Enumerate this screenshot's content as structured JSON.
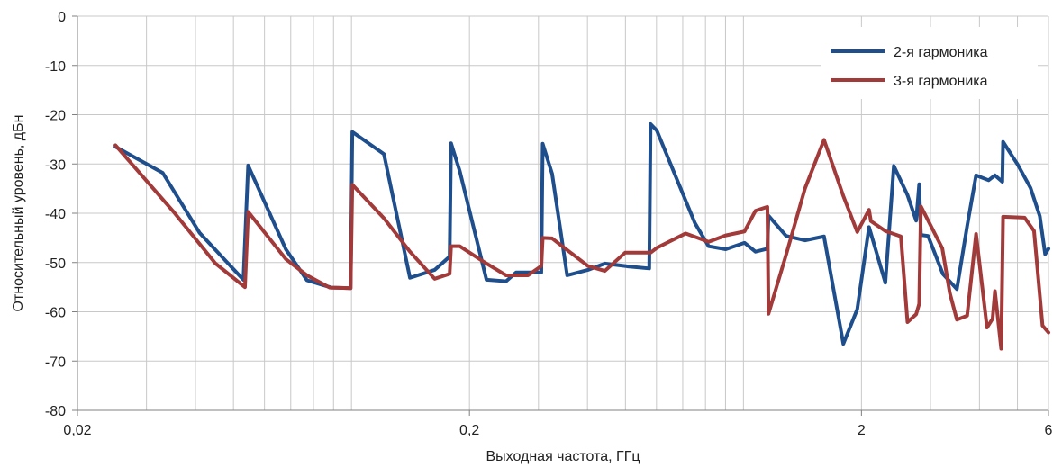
{
  "chart_data": {
    "type": "line",
    "title": "",
    "xlabel": "Выходная частота, ГГц",
    "ylabel": "Относительный уровень, дБн",
    "xscale": "log",
    "xlim": [
      0.02,
      6
    ],
    "ylim": [
      -80,
      0
    ],
    "x_ticks": [
      {
        "value": 0.02,
        "label": "0,02"
      },
      {
        "value": 0.2,
        "label": "0,2"
      },
      {
        "value": 2,
        "label": "2"
      },
      {
        "value": 6,
        "label": "6"
      }
    ],
    "y_ticks": [
      0,
      -10,
      -20,
      -30,
      -40,
      -50,
      -60,
      -70,
      -80
    ],
    "grid": true,
    "legend_position": "top-right",
    "series": [
      {
        "name": "2-я гармоника",
        "color": "#1f4e8c",
        "points": [
          [
            0.025,
            -26.5
          ],
          [
            0.033,
            -31.8
          ],
          [
            0.041,
            -44
          ],
          [
            0.053,
            -53.5
          ],
          [
            0.0545,
            -30.3
          ],
          [
            0.068,
            -47.3
          ],
          [
            0.077,
            -53.6
          ],
          [
            0.089,
            -55.1
          ],
          [
            0.0995,
            -55.2
          ],
          [
            0.1005,
            -23.5
          ],
          [
            0.121,
            -28
          ],
          [
            0.141,
            -53.1
          ],
          [
            0.163,
            -51.5
          ],
          [
            0.178,
            -48.8
          ],
          [
            0.1795,
            -25.8
          ],
          [
            0.189,
            -31.5
          ],
          [
            0.221,
            -53.5
          ],
          [
            0.248,
            -53.8
          ],
          [
            0.263,
            -52
          ],
          [
            0.305,
            -52
          ],
          [
            0.3075,
            -25.9
          ],
          [
            0.325,
            -32
          ],
          [
            0.355,
            -52.6
          ],
          [
            0.401,
            -51.5
          ],
          [
            0.443,
            -50.2
          ],
          [
            0.499,
            -50.7
          ],
          [
            0.5075,
            -50.8
          ],
          [
            0.575,
            -51.2
          ],
          [
            0.5795,
            -21.9
          ],
          [
            0.601,
            -23.2
          ],
          [
            0.752,
            -42
          ],
          [
            0.815,
            -46.7
          ],
          [
            0.901,
            -47.3
          ],
          [
            1.006,
            -46
          ],
          [
            1.073,
            -47.8
          ],
          [
            1.151,
            -47.2
          ],
          [
            1.1585,
            -40.5
          ],
          [
            1.285,
            -44.6
          ],
          [
            1.435,
            -45.5
          ],
          [
            1.605,
            -44.7
          ],
          [
            1.798,
            -66.5
          ],
          [
            1.951,
            -59.5
          ],
          [
            2.091,
            -42.8
          ],
          [
            2.301,
            -54.1
          ],
          [
            2.419,
            -30.4
          ],
          [
            2.621,
            -36.3
          ],
          [
            2.758,
            -41.5
          ],
          [
            2.8075,
            -34.1
          ],
          [
            2.8355,
            -44.4
          ],
          [
            2.958,
            -44.6
          ],
          [
            3.226,
            -52.3
          ],
          [
            3.503,
            -55.4
          ],
          [
            3.721,
            -42.6
          ],
          [
            3.921,
            -32.3
          ],
          [
            4.221,
            -33.3
          ],
          [
            4.381,
            -32.3
          ],
          [
            4.575,
            -33.6
          ],
          [
            4.5945,
            -25.5
          ],
          [
            5.005,
            -30.1
          ],
          [
            5.402,
            -34.9
          ],
          [
            5.702,
            -40.6
          ],
          [
            5.883,
            -48.3
          ],
          [
            6.0,
            -47.2
          ]
        ]
      },
      {
        "name": "3-я гармоника",
        "color": "#a23a3a",
        "points": [
          [
            0.025,
            -26.2
          ],
          [
            0.035,
            -39.5
          ],
          [
            0.045,
            -50.2
          ],
          [
            0.0535,
            -55
          ],
          [
            0.0545,
            -39.7
          ],
          [
            0.068,
            -49.3
          ],
          [
            0.077,
            -52.6
          ],
          [
            0.088,
            -55.1
          ],
          [
            0.0995,
            -55.2
          ],
          [
            0.1005,
            -34.2
          ],
          [
            0.121,
            -41
          ],
          [
            0.141,
            -47.8
          ],
          [
            0.163,
            -53.3
          ],
          [
            0.178,
            -52.3
          ],
          [
            0.1795,
            -46.7
          ],
          [
            0.189,
            -46.7
          ],
          [
            0.217,
            -49.8
          ],
          [
            0.248,
            -52.6
          ],
          [
            0.282,
            -52.6
          ],
          [
            0.305,
            -50.7
          ],
          [
            0.3075,
            -45
          ],
          [
            0.325,
            -45.1
          ],
          [
            0.401,
            -50.7
          ],
          [
            0.443,
            -51.7
          ],
          [
            0.499,
            -48
          ],
          [
            0.5795,
            -48
          ],
          [
            0.602,
            -47
          ],
          [
            0.712,
            -44.1
          ],
          [
            0.815,
            -45.8
          ],
          [
            0.901,
            -44.5
          ],
          [
            1.006,
            -43.7
          ],
          [
            1.073,
            -39.5
          ],
          [
            1.151,
            -38.7
          ],
          [
            1.1585,
            -60.4
          ],
          [
            1.285,
            -48.4
          ],
          [
            1.435,
            -35
          ],
          [
            1.605,
            -25.1
          ],
          [
            1.798,
            -36.5
          ],
          [
            1.951,
            -43.8
          ],
          [
            2.091,
            -39.3
          ],
          [
            2.114,
            -41.6
          ],
          [
            2.301,
            -43.6
          ],
          [
            2.521,
            -44.7
          ],
          [
            2.621,
            -62.1
          ],
          [
            2.758,
            -60.5
          ],
          [
            2.8075,
            -58.4
          ],
          [
            2.8355,
            -38.6
          ],
          [
            3.215,
            -47.1
          ],
          [
            3.361,
            -56.2
          ],
          [
            3.503,
            -61.6
          ],
          [
            3.721,
            -60.8
          ],
          [
            3.921,
            -44.2
          ],
          [
            4.181,
            -63.2
          ],
          [
            4.321,
            -61.4
          ],
          [
            4.381,
            -55.8
          ],
          [
            4.5445,
            -67.5
          ],
          [
            4.5945,
            -40.7
          ],
          [
            5.215,
            -40.9
          ],
          [
            5.512,
            -43.6
          ],
          [
            5.793,
            -62.8
          ],
          [
            6.0,
            -64.2
          ]
        ]
      }
    ]
  }
}
